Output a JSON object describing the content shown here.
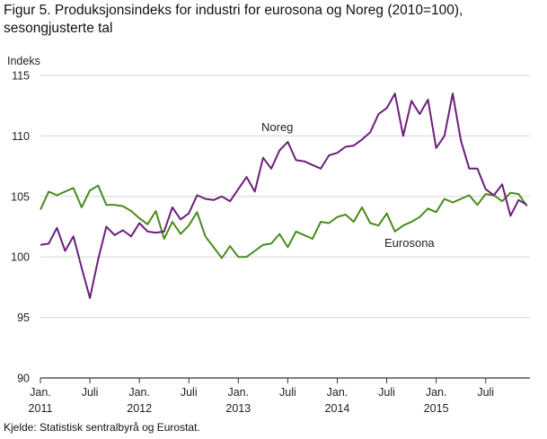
{
  "chart_data": {
    "type": "line",
    "title": "Figur 5. Produksjonsindeks for industri for eurosona og Noreg (2010=100), sesongjusterte tal",
    "ylabel": "Indeks",
    "source": "Kjelde: Statistisk sentralbyrå og Eurostat.",
    "ylim": [
      90,
      115
    ],
    "yticks": [
      90,
      95,
      100,
      105,
      110,
      115
    ],
    "grid": true,
    "x_start": "2011-01",
    "x_ticks": [
      {
        "line1": "Jan.",
        "line2": "2011",
        "index": 0
      },
      {
        "line1": "Juli",
        "line2": "",
        "index": 6
      },
      {
        "line1": "Jan.",
        "line2": "2012",
        "index": 12
      },
      {
        "line1": "Juli",
        "line2": "",
        "index": 18
      },
      {
        "line1": "Jan.",
        "line2": "2013",
        "index": 24
      },
      {
        "line1": "Juli",
        "line2": "",
        "index": 30
      },
      {
        "line1": "Jan.",
        "line2": "2014",
        "index": 36
      },
      {
        "line1": "Juli",
        "line2": "",
        "index": 42
      },
      {
        "line1": "Jan.",
        "line2": "2015",
        "index": 48
      },
      {
        "line1": "Juli",
        "line2": "",
        "index": 54
      }
    ],
    "series": [
      {
        "name": "Noreg",
        "color": "#6b1f7b",
        "values": [
          101.0,
          101.1,
          102.4,
          100.5,
          101.7,
          99.1,
          96.6,
          99.8,
          102.5,
          101.8,
          102.2,
          101.7,
          102.8,
          102.1,
          102.0,
          102.1,
          104.1,
          103.1,
          103.6,
          105.1,
          104.8,
          104.7,
          105.0,
          104.6,
          105.6,
          106.6,
          105.4,
          108.2,
          107.3,
          108.8,
          109.5,
          108.0,
          107.9,
          107.6,
          107.3,
          108.4,
          108.6,
          109.1,
          109.2,
          109.7,
          110.3,
          111.8,
          112.3,
          113.5,
          110.0,
          112.9,
          111.8,
          113.0,
          109.0,
          110.0,
          113.5,
          109.6,
          107.3,
          107.3,
          105.6,
          105.1,
          106.0,
          103.4,
          104.7,
          104.3
        ]
      },
      {
        "name": "Eurosona",
        "color": "#4a8a1c",
        "values": [
          103.9,
          105.4,
          105.1,
          105.4,
          105.7,
          104.1,
          105.5,
          105.9,
          104.3,
          104.3,
          104.2,
          103.8,
          103.2,
          102.7,
          103.8,
          101.5,
          102.9,
          101.9,
          102.6,
          103.7,
          101.7,
          100.8,
          99.9,
          100.9,
          100.0,
          100.0,
          100.5,
          101.0,
          101.1,
          101.9,
          100.8,
          102.1,
          101.8,
          101.5,
          102.9,
          102.8,
          103.3,
          103.5,
          102.9,
          104.1,
          102.8,
          102.6,
          103.6,
          102.1,
          102.6,
          102.9,
          103.3,
          104.0,
          103.7,
          104.8,
          104.5,
          104.8,
          105.1,
          104.3,
          105.2,
          105.1,
          104.6,
          105.3,
          105.2,
          104.2
        ]
      }
    ]
  }
}
